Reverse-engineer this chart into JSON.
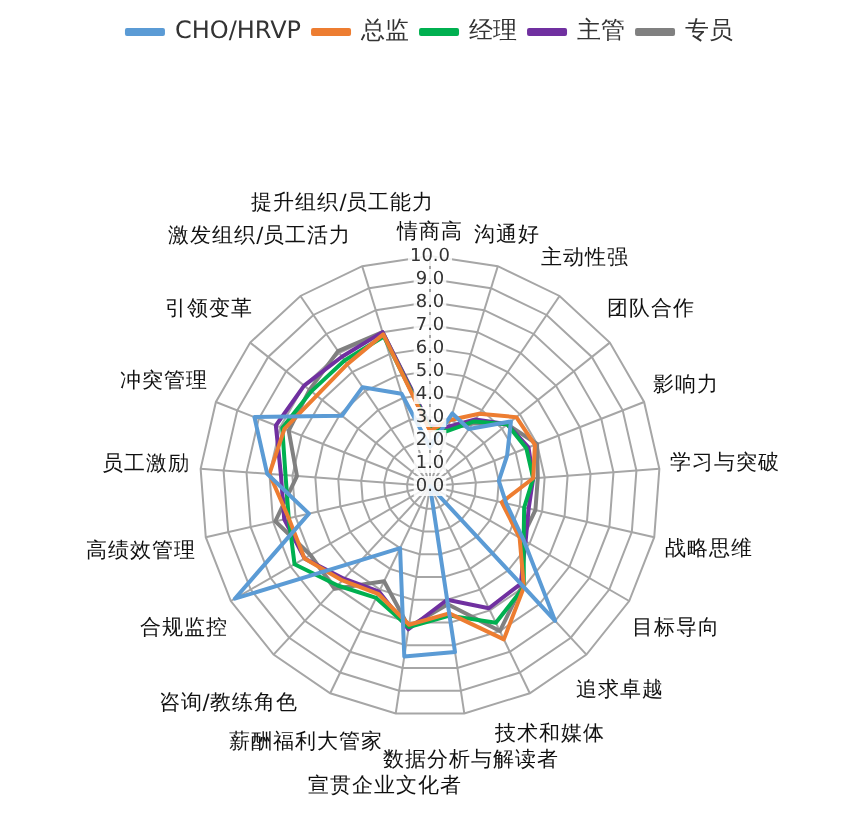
{
  "chart_data": {
    "type": "radar",
    "categories": [
      "情商高",
      "沟通好",
      "主动性强",
      "团队合作",
      "影响力",
      "学习与突破",
      "战略思维",
      "目标导向",
      "追求卓越",
      "技术和媒体",
      "数据分析与解读者",
      "宣贯企业文化者",
      "薪酬福利大管家",
      "咨询/教练角色",
      "合规监控",
      "高绩效管理",
      "员工激励",
      "冲突管理",
      "引领变革",
      "激发组织/员工活力",
      "提升组织/员工能力"
    ],
    "series": [
      {
        "name": "CHO/HRVP",
        "color": "#5b9bd5",
        "values": [
          1.7,
          3.3,
          3.0,
          4.5,
          3.6,
          3.0,
          3.4,
          4.7,
          8.0,
          0,
          7.3,
          7.5,
          3.0,
          4.4,
          9.8,
          5.4,
          7.1,
          8.2,
          4.9,
          5.2,
          4.2
        ]
      },
      {
        "name": "总监",
        "color": "#ed7d31",
        "values": [
          2.4,
          3.0,
          3.8,
          4.8,
          4.9,
          4.5,
          3.2,
          4.5,
          6.0,
          7.4,
          5.6,
          6.1,
          5.2,
          5.6,
          6.3,
          6.3,
          7.0,
          6.8,
          6.3,
          6.4,
          6.9
        ]
      },
      {
        "name": "经理",
        "color": "#00b050",
        "values": [
          2.5,
          2.5,
          3.4,
          4.3,
          4.5,
          4.5,
          4.2,
          4.7,
          6.0,
          6.6,
          5.7,
          6.2,
          5.4,
          5.9,
          6.8,
          6.3,
          6.3,
          6.9,
          6.6,
          6.6,
          6.8
        ]
      },
      {
        "name": "主管",
        "color": "#7030a0",
        "values": [
          2.6,
          2.7,
          3.5,
          4.3,
          4.6,
          4.5,
          4.4,
          4.8,
          5.8,
          5.9,
          5.0,
          6.3,
          5.1,
          5.5,
          6.3,
          6.5,
          6.5,
          7.2,
          7.0,
          6.8,
          7.0
        ]
      },
      {
        "name": "专员",
        "color": "#808080",
        "values": [
          2.6,
          2.6,
          3.3,
          4.3,
          5.0,
          4.7,
          4.7,
          4.6,
          5.9,
          7.0,
          5.2,
          6.2,
          4.6,
          6.1,
          6.0,
          6.9,
          5.8,
          6.6,
          6.7,
          7.1,
          7.0
        ]
      }
    ],
    "ylim": [
      0,
      10
    ],
    "yticks": [
      {
        "value": 0,
        "label": "0.0"
      },
      {
        "value": 1,
        "label": "1.0"
      },
      {
        "value": 2,
        "label": "2.0"
      },
      {
        "value": 3,
        "label": "3.0"
      },
      {
        "value": 4,
        "label": "4.0"
      },
      {
        "value": 5,
        "label": "5.0"
      },
      {
        "value": 6,
        "label": "6.0"
      },
      {
        "value": 7,
        "label": "7.0"
      },
      {
        "value": 8,
        "label": "8.0"
      },
      {
        "value": 9,
        "label": "9.0"
      },
      {
        "value": 10,
        "label": "10.0"
      }
    ],
    "grid": true,
    "legend": "top",
    "marker": "none",
    "line_style": "solid"
  }
}
